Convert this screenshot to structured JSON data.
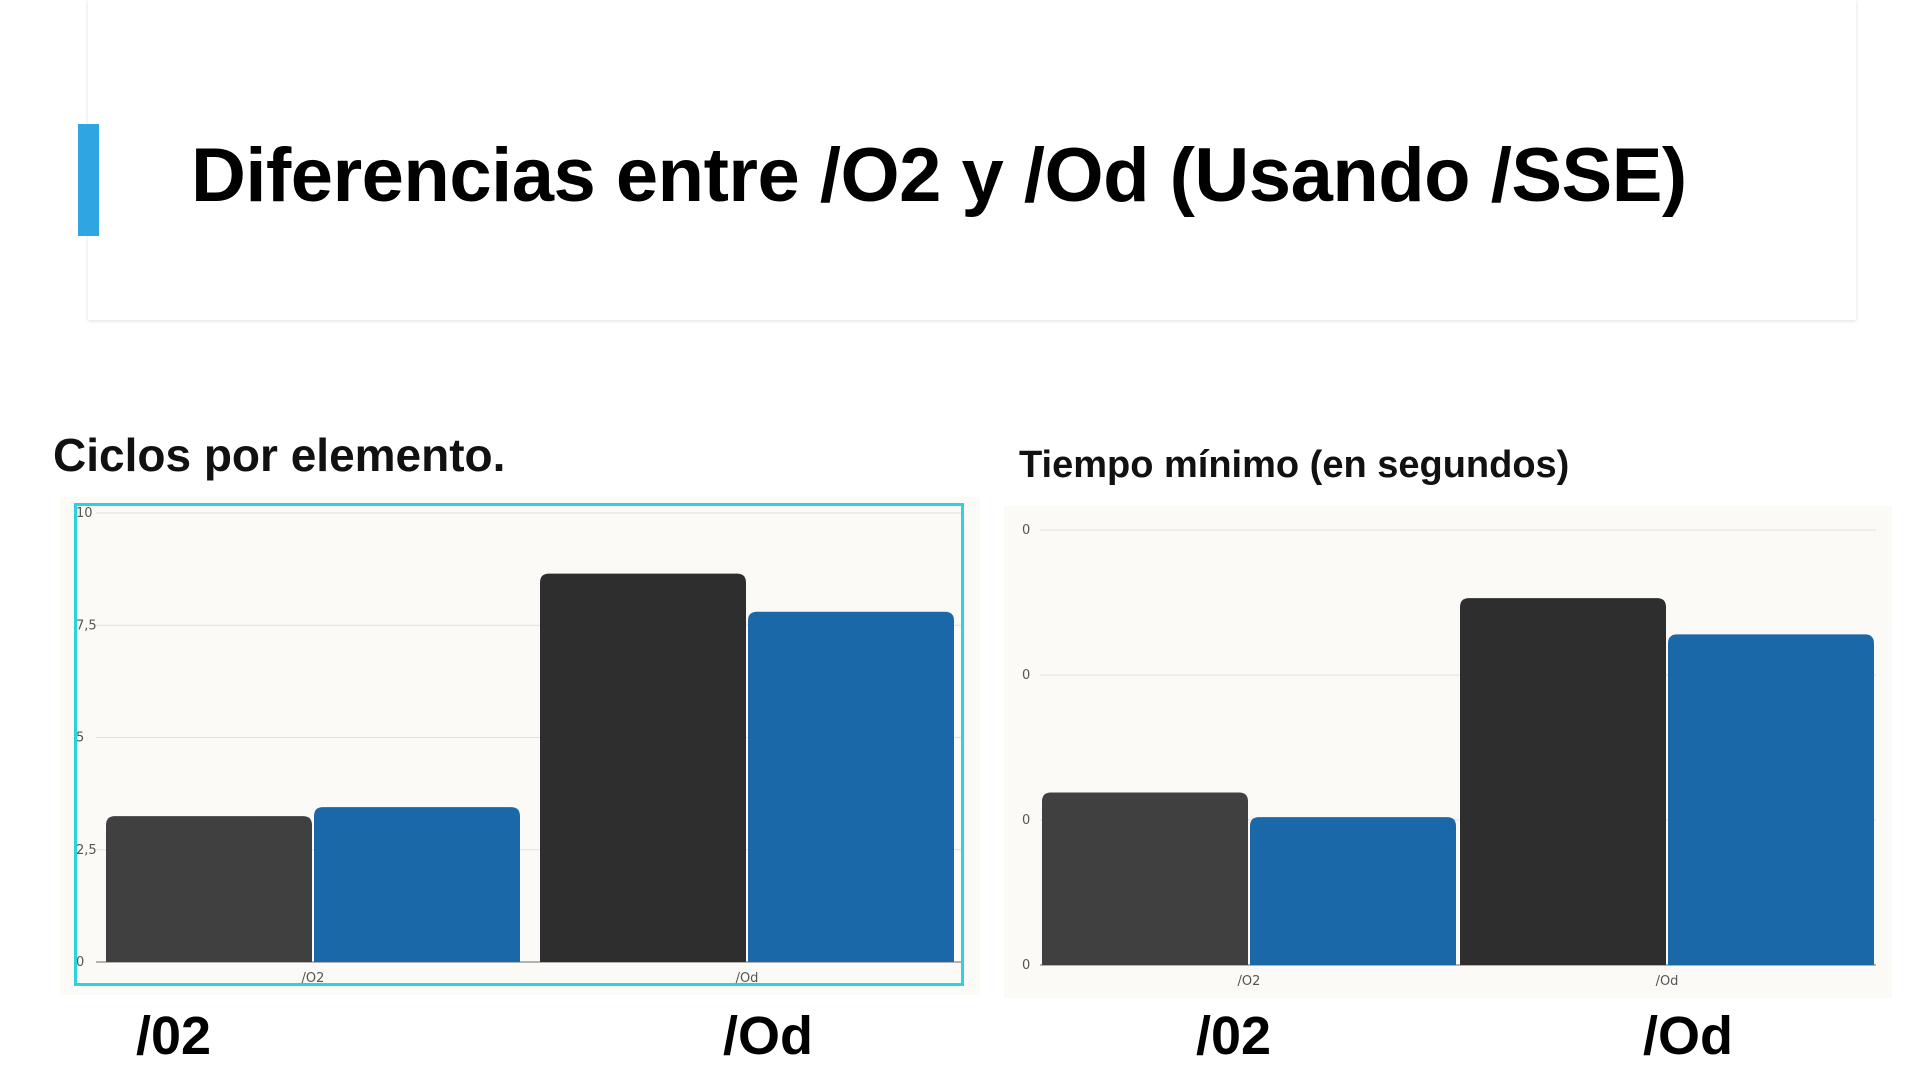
{
  "slide": {
    "title": "Diferencias entre /O2 y /Od (Usando /SSE)",
    "accent_color": "#2fa6e0"
  },
  "bottom_labels": {
    "left_o2": "/02",
    "left_od": "/Od",
    "right_o2": "/02",
    "right_od": "/Od"
  },
  "chart_data": [
    {
      "type": "bar",
      "title": "Ciclos por elemento.",
      "categories": [
        "/O2",
        "/Od"
      ],
      "series": [
        {
          "color": "#404040",
          "values": [
            3.25,
            8.65
          ]
        },
        {
          "color": "#1b68a9",
          "values": [
            3.45,
            7.8
          ]
        }
      ],
      "ylim": [
        0,
        10
      ],
      "yticks": [
        "0",
        "2,5",
        "5",
        "7,5",
        "10"
      ],
      "grid": true
    },
    {
      "type": "bar",
      "title": "Tiempo mínimo (en segundos)",
      "categories": [
        "/O2",
        "/Od"
      ],
      "series": [
        {
          "color": "#404040",
          "values": [
            1.19,
            2.53
          ]
        },
        {
          "color": "#1b68a9",
          "values": [
            1.02,
            2.28
          ]
        }
      ],
      "ylim": [
        0,
        3
      ],
      "yticks": [
        "0",
        "0",
        "0",
        "0"
      ],
      "grid": true
    }
  ]
}
